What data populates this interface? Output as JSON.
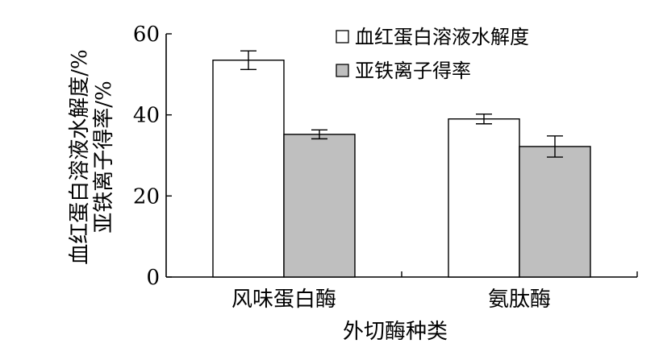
{
  "chart_data": {
    "type": "bar",
    "title": "",
    "xlabel": "外切酶种类",
    "ylabel_lines": [
      "血红蛋白溶液水解度/%",
      "亚铁离子得率/%"
    ],
    "categories": [
      "风味蛋白酶",
      "氨肽酶"
    ],
    "series": [
      {
        "name": "血红蛋白溶液水解度",
        "values": [
          53.5,
          39.0
        ],
        "errors": [
          2.3,
          1.2
        ],
        "color": "#ffffff"
      },
      {
        "name": "亚铁离子得率",
        "values": [
          35.2,
          32.2
        ],
        "errors": [
          1.1,
          2.6
        ],
        "color": "#bfbfbf"
      }
    ],
    "ylim": [
      0,
      60
    ],
    "yticks": [
      "0",
      "20",
      "40",
      "60"
    ],
    "grid": false,
    "legend_position": "top-right"
  }
}
